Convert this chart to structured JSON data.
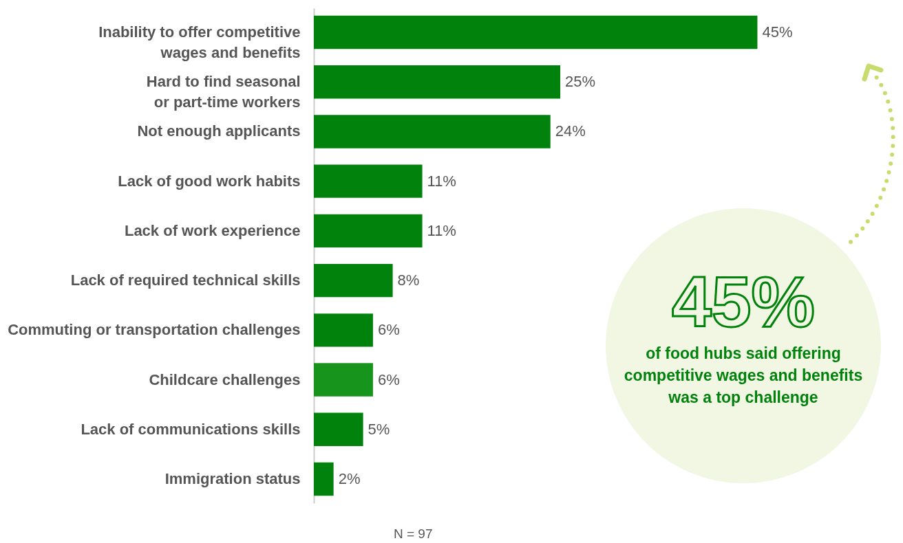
{
  "chart_data": {
    "type": "bar",
    "orientation": "horizontal",
    "categories": [
      "Inability to offer competitive wages and benefits",
      "Hard to find seasonal or part-time workers",
      "Not enough applicants",
      "Lack of good work habits",
      "Lack of work experience",
      "Lack of required technical skills",
      "Commuting or transportation challenges",
      "Childcare challenges",
      "Lack of communications skills",
      "Immigration status"
    ],
    "values": [
      45,
      25,
      24,
      11,
      11,
      8,
      6,
      6,
      5,
      2
    ],
    "value_labels": [
      "45%",
      "25%",
      "24%",
      "11%",
      "11%",
      "8%",
      "6%",
      "6%",
      "5%",
      "2%"
    ],
    "colors": [
      "#00820d",
      "#00820d",
      "#00820d",
      "#00820d",
      "#00820d",
      "#00820d",
      "#00820d",
      "#16941c",
      "#00820d",
      "#00820d"
    ],
    "annotations": [
      "45%",
      "of food hubs said offering competitive wages and benefits was a top challenge",
      "N = 97"
    ]
  }
}
